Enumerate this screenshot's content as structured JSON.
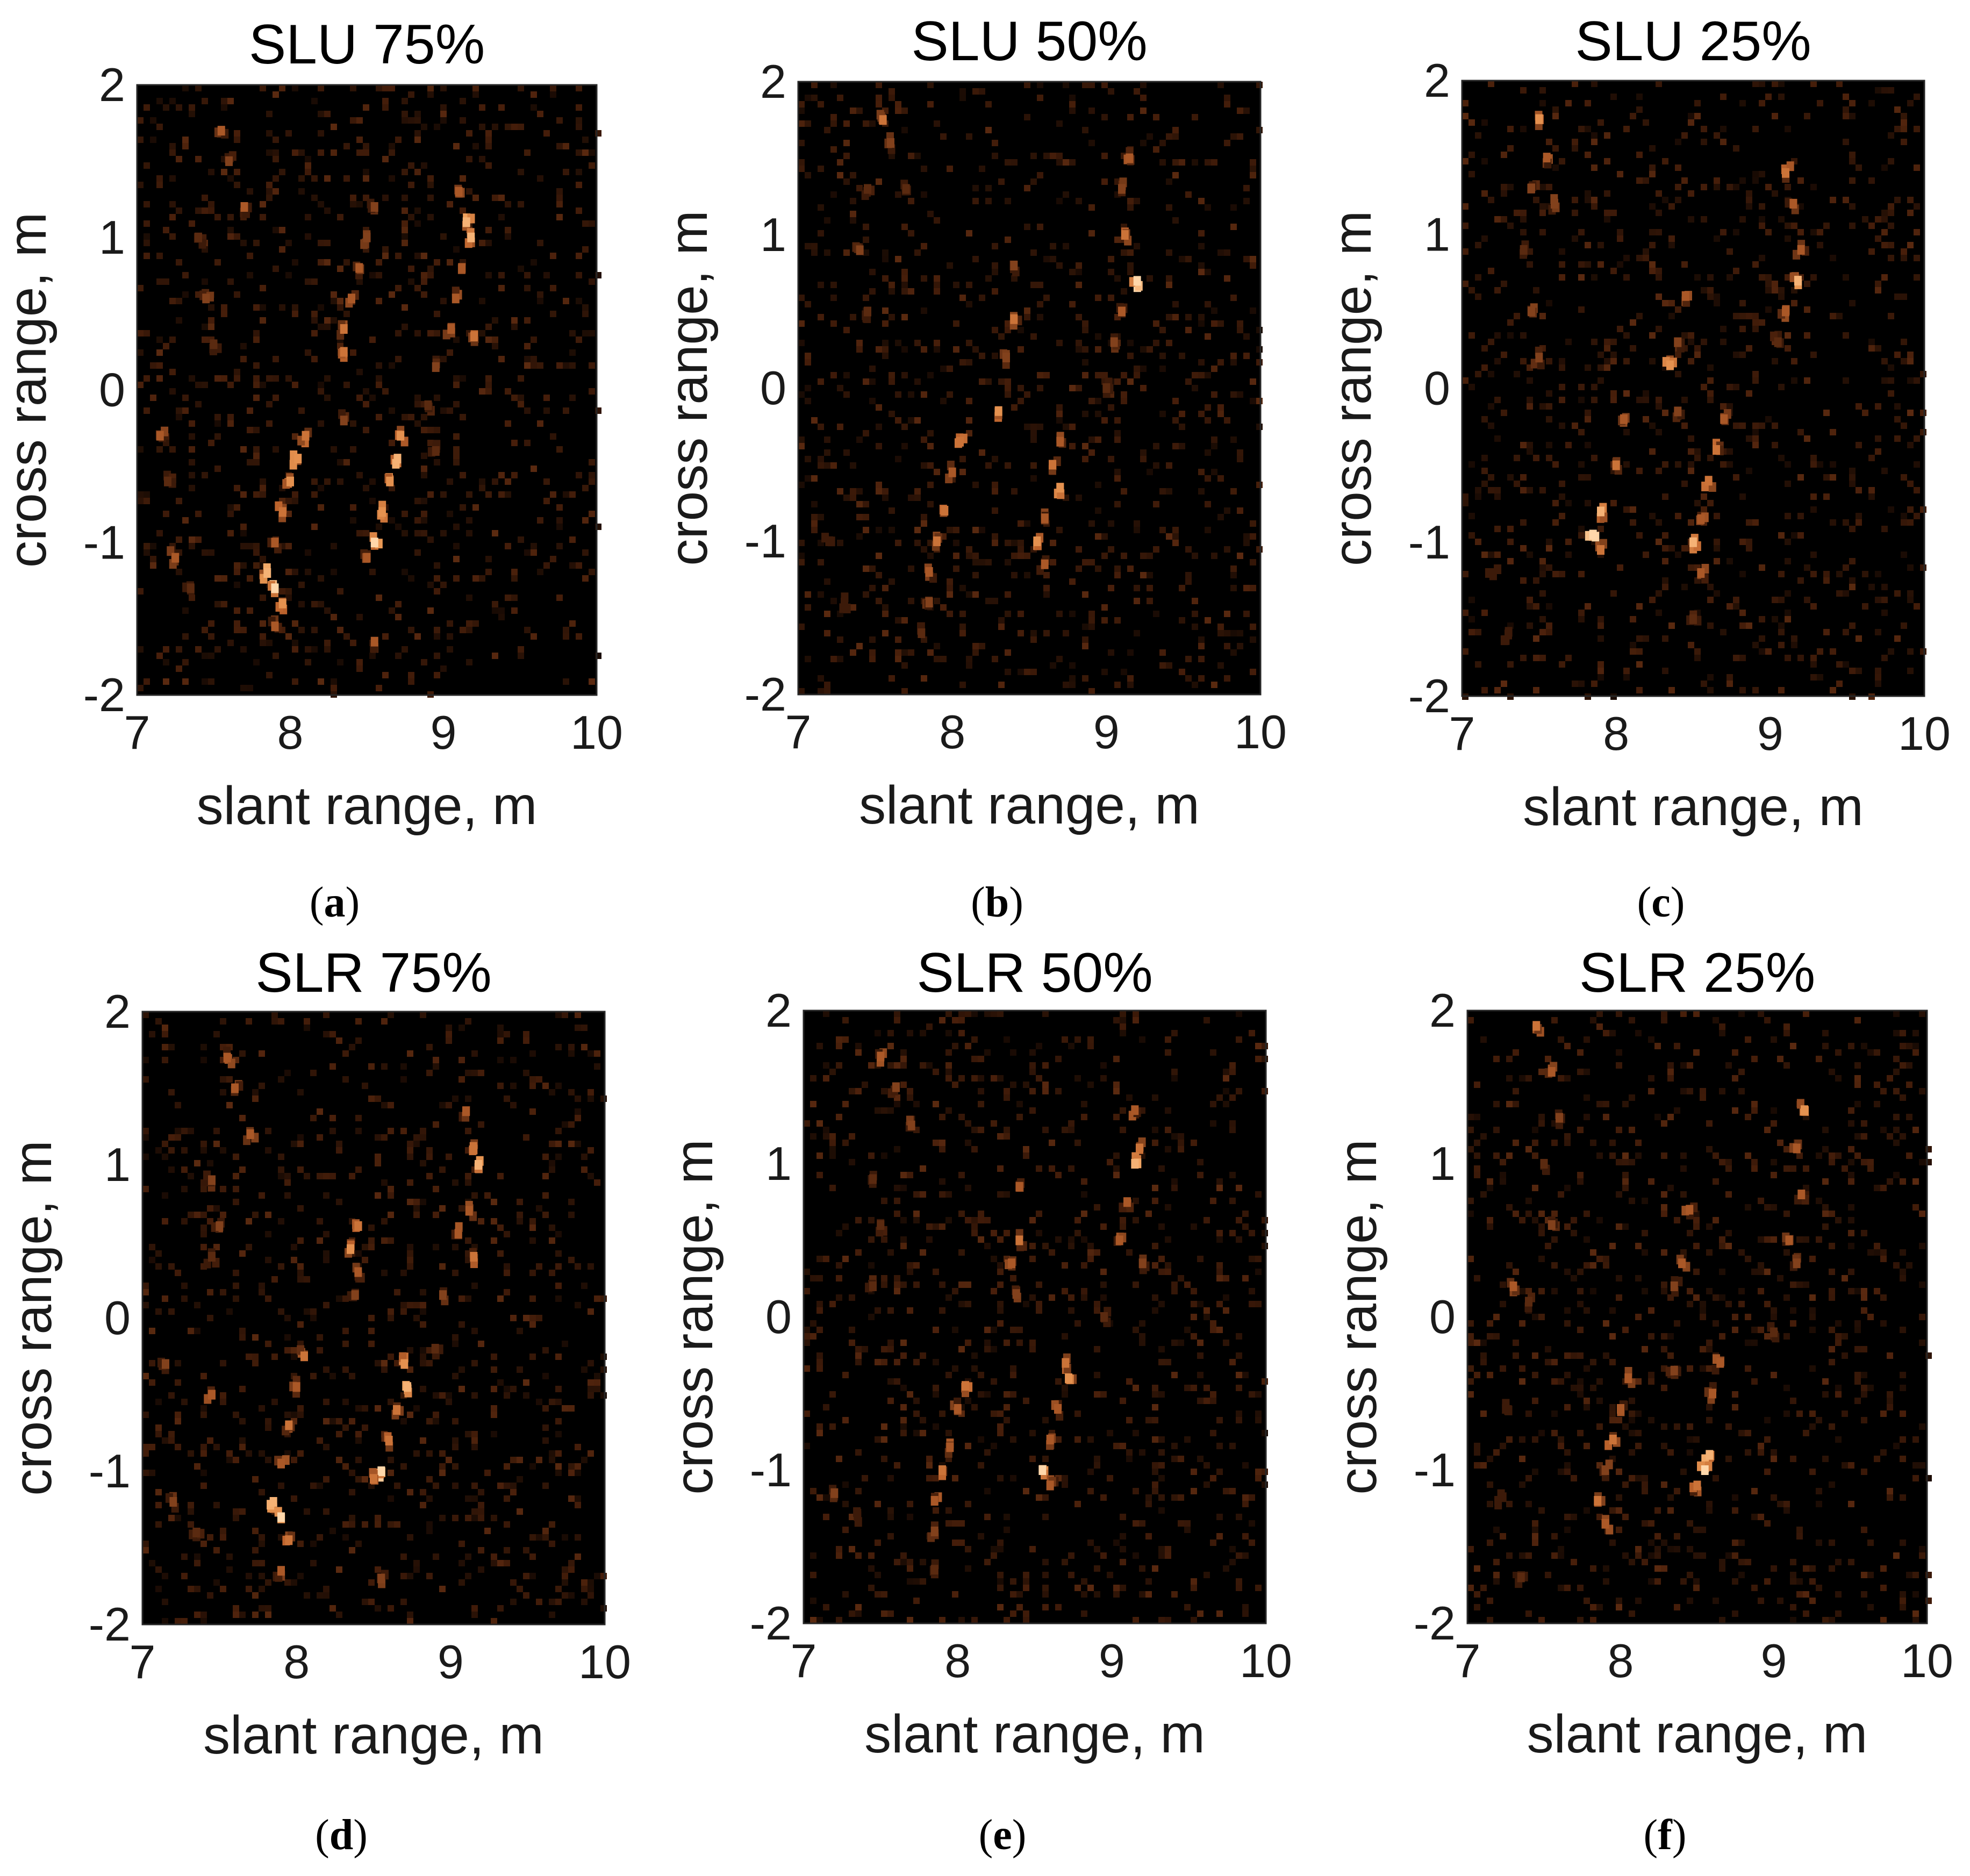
{
  "chart_data": [
    {
      "type": "heatmap",
      "panel": "a",
      "title": "SLU 75%",
      "xlabel": "slant range, m",
      "ylabel": "cross range, m",
      "xlim": [
        7,
        10
      ],
      "ylim": [
        -2,
        2
      ],
      "xticks": [
        "7",
        "8",
        "9",
        "10"
      ],
      "yticks": [
        "-2",
        "-1",
        "0",
        "1",
        "2"
      ],
      "caption": "a",
      "colormap": "black-to-orange",
      "points": [
        [
          7.55,
          1.7,
          0.6
        ],
        [
          7.6,
          1.5,
          0.5
        ],
        [
          7.7,
          1.2,
          0.6
        ],
        [
          7.4,
          1.0,
          0.4
        ],
        [
          7.45,
          0.6,
          0.5
        ],
        [
          7.5,
          0.3,
          0.4
        ],
        [
          7.15,
          -0.3,
          0.6
        ],
        [
          7.2,
          -0.6,
          0.4
        ],
        [
          7.25,
          -1.1,
          0.6
        ],
        [
          7.35,
          -1.3,
          0.4
        ],
        [
          8.1,
          -0.3,
          0.7
        ],
        [
          8.05,
          -0.45,
          0.8
        ],
        [
          8.0,
          -0.6,
          0.8
        ],
        [
          7.95,
          -0.8,
          0.7
        ],
        [
          7.9,
          -1.0,
          0.6
        ],
        [
          7.85,
          -1.2,
          0.9
        ],
        [
          7.9,
          -1.3,
          1.0
        ],
        [
          7.95,
          -1.4,
          0.8
        ],
        [
          7.9,
          -1.55,
          0.6
        ],
        [
          8.55,
          1.2,
          0.5
        ],
        [
          8.5,
          1.0,
          0.5
        ],
        [
          8.45,
          0.8,
          0.6
        ],
        [
          8.4,
          0.6,
          0.6
        ],
        [
          8.35,
          0.4,
          0.7
        ],
        [
          8.35,
          0.25,
          0.7
        ],
        [
          8.35,
          -0.2,
          0.5
        ],
        [
          8.72,
          -0.3,
          0.8
        ],
        [
          8.7,
          -0.45,
          0.9
        ],
        [
          8.65,
          -0.6,
          0.8
        ],
        [
          8.6,
          -0.8,
          0.8
        ],
        [
          8.55,
          -1.0,
          1.0
        ],
        [
          8.5,
          -1.1,
          0.6
        ],
        [
          8.55,
          -1.65,
          0.6
        ],
        [
          9.1,
          1.3,
          0.6
        ],
        [
          9.15,
          1.1,
          0.9
        ],
        [
          9.18,
          1.0,
          0.9
        ],
        [
          9.12,
          0.8,
          0.6
        ],
        [
          9.08,
          0.6,
          0.6
        ],
        [
          9.05,
          0.4,
          0.6
        ],
        [
          9.2,
          0.35,
          0.7
        ],
        [
          8.95,
          0.15,
          0.5
        ],
        [
          8.9,
          -0.1,
          0.4
        ],
        [
          8.95,
          -0.4,
          0.4
        ]
      ]
    },
    {
      "type": "heatmap",
      "panel": "b",
      "title": "SLU 50%",
      "xlabel": "slant range, m",
      "ylabel": "cross range, m",
      "xlim": [
        7,
        10
      ],
      "ylim": [
        -2,
        2
      ],
      "xticks": [
        "7",
        "8",
        "9",
        "10"
      ],
      "yticks": [
        "-2",
        "-1",
        "0",
        "1",
        "2"
      ],
      "caption": "b",
      "colormap": "black-to-orange",
      "points": [
        [
          7.55,
          1.75,
          0.7
        ],
        [
          7.6,
          1.6,
          0.5
        ],
        [
          7.45,
          1.3,
          0.4
        ],
        [
          7.4,
          0.9,
          0.5
        ],
        [
          7.45,
          0.5,
          0.4
        ],
        [
          7.7,
          1.3,
          0.4
        ],
        [
          8.05,
          -0.35,
          0.7
        ],
        [
          8.0,
          -0.55,
          0.6
        ],
        [
          7.95,
          -0.8,
          0.7
        ],
        [
          7.9,
          -1.0,
          0.7
        ],
        [
          7.85,
          -1.2,
          0.6
        ],
        [
          7.85,
          -1.4,
          0.5
        ],
        [
          7.8,
          -1.6,
          0.4
        ],
        [
          8.4,
          0.8,
          0.5
        ],
        [
          8.4,
          0.45,
          0.7
        ],
        [
          8.35,
          0.2,
          0.5
        ],
        [
          8.3,
          -0.15,
          0.8
        ],
        [
          8.7,
          -0.35,
          0.6
        ],
        [
          8.65,
          -0.5,
          0.7
        ],
        [
          8.7,
          -0.65,
          0.8
        ],
        [
          8.6,
          -0.85,
          0.6
        ],
        [
          8.55,
          -1.0,
          0.8
        ],
        [
          8.6,
          -1.15,
          0.6
        ],
        [
          9.15,
          1.5,
          0.6
        ],
        [
          9.1,
          1.3,
          0.5
        ],
        [
          9.12,
          1.0,
          0.7
        ],
        [
          9.2,
          0.7,
          1.0
        ],
        [
          9.1,
          0.5,
          0.6
        ],
        [
          9.05,
          0.3,
          0.5
        ],
        [
          9.0,
          0.0,
          0.4
        ],
        [
          7.2,
          -1.0,
          0.3
        ],
        [
          7.3,
          -1.4,
          0.3
        ]
      ]
    },
    {
      "type": "heatmap",
      "panel": "c",
      "title": "SLU 25%",
      "xlabel": "slant range, m",
      "ylabel": "cross range, m",
      "xlim": [
        7,
        10
      ],
      "ylim": [
        -2,
        2
      ],
      "xticks": [
        "7",
        "8",
        "9",
        "10"
      ],
      "yticks": [
        "-2",
        "-1",
        "0",
        "1",
        "2"
      ],
      "caption": "c",
      "colormap": "black-to-orange",
      "points": [
        [
          7.5,
          1.75,
          0.8
        ],
        [
          7.55,
          1.5,
          0.6
        ],
        [
          7.45,
          1.3,
          0.5
        ],
        [
          7.6,
          1.2,
          0.5
        ],
        [
          7.4,
          0.9,
          0.4
        ],
        [
          7.45,
          0.5,
          0.5
        ],
        [
          7.5,
          0.2,
          0.5
        ],
        [
          8.05,
          -0.2,
          0.6
        ],
        [
          8.0,
          -0.5,
          0.7
        ],
        [
          7.9,
          -0.8,
          0.9
        ],
        [
          7.85,
          -0.95,
          1.0
        ],
        [
          7.9,
          -1.05,
          0.7
        ],
        [
          8.45,
          0.6,
          0.6
        ],
        [
          8.4,
          0.3,
          0.5
        ],
        [
          8.35,
          0.15,
          0.8
        ],
        [
          8.4,
          -0.15,
          0.5
        ],
        [
          8.7,
          -0.2,
          0.6
        ],
        [
          8.65,
          -0.4,
          0.7
        ],
        [
          8.6,
          -0.6,
          0.7
        ],
        [
          8.55,
          -0.85,
          0.6
        ],
        [
          8.5,
          -1.0,
          0.9
        ],
        [
          8.55,
          -1.2,
          0.6
        ],
        [
          8.5,
          -1.5,
          0.4
        ],
        [
          9.1,
          1.4,
          0.7
        ],
        [
          9.15,
          1.2,
          0.6
        ],
        [
          9.2,
          0.9,
          0.6
        ],
        [
          9.18,
          0.7,
          0.9
        ],
        [
          9.1,
          0.5,
          0.6
        ],
        [
          9.05,
          0.3,
          0.4
        ],
        [
          7.2,
          -1.2,
          0.3
        ],
        [
          7.3,
          -1.6,
          0.3
        ]
      ]
    },
    {
      "type": "heatmap",
      "panel": "d",
      "title": "SLR 75%",
      "xlabel": "slant range, m",
      "ylabel": "cross range, m",
      "xlim": [
        7,
        10
      ],
      "ylim": [
        -2,
        2
      ],
      "xticks": [
        "7",
        "8",
        "9",
        "10"
      ],
      "yticks": [
        "-2",
        "-1",
        "0",
        "1",
        "2"
      ],
      "caption": "d",
      "colormap": "black-to-orange",
      "points": [
        [
          7.55,
          1.7,
          0.6
        ],
        [
          7.6,
          1.5,
          0.6
        ],
        [
          7.7,
          1.2,
          0.6
        ],
        [
          7.45,
          0.9,
          0.5
        ],
        [
          7.5,
          0.6,
          0.5
        ],
        [
          7.45,
          0.4,
          0.4
        ],
        [
          7.15,
          -0.3,
          0.5
        ],
        [
          7.45,
          -0.5,
          0.6
        ],
        [
          7.2,
          -1.2,
          0.5
        ],
        [
          7.35,
          -1.4,
          0.4
        ],
        [
          8.05,
          -0.25,
          0.7
        ],
        [
          8.0,
          -0.45,
          0.6
        ],
        [
          7.95,
          -0.7,
          0.7
        ],
        [
          7.9,
          -0.95,
          0.6
        ],
        [
          7.85,
          -1.2,
          0.9
        ],
        [
          7.9,
          -1.3,
          1.0
        ],
        [
          7.95,
          -1.45,
          0.7
        ],
        [
          7.9,
          -1.65,
          0.6
        ],
        [
          8.4,
          0.6,
          0.7
        ],
        [
          8.35,
          0.45,
          0.8
        ],
        [
          8.4,
          0.3,
          0.6
        ],
        [
          8.38,
          0.15,
          0.5
        ],
        [
          8.7,
          -0.3,
          0.8
        ],
        [
          8.72,
          -0.45,
          0.9
        ],
        [
          8.65,
          -0.6,
          0.7
        ],
        [
          8.6,
          -0.8,
          0.7
        ],
        [
          8.55,
          -1.0,
          1.0
        ],
        [
          8.5,
          -1.05,
          0.7
        ],
        [
          8.55,
          -1.7,
          0.5
        ],
        [
          9.1,
          1.35,
          0.6
        ],
        [
          9.15,
          1.1,
          0.7
        ],
        [
          9.18,
          1.0,
          0.9
        ],
        [
          9.12,
          0.7,
          0.6
        ],
        [
          9.05,
          0.55,
          0.6
        ],
        [
          9.15,
          0.4,
          0.7
        ],
        [
          8.95,
          0.15,
          0.5
        ],
        [
          8.9,
          -0.2,
          0.4
        ]
      ]
    },
    {
      "type": "heatmap",
      "panel": "e",
      "title": "SLR 50%",
      "xlabel": "slant range, m",
      "ylabel": "cross range, m",
      "xlim": [
        7,
        10
      ],
      "ylim": [
        -2,
        2
      ],
      "xticks": [
        "7",
        "8",
        "9",
        "10"
      ],
      "yticks": [
        "-2",
        "-1",
        "0",
        "1",
        "2"
      ],
      "caption": "e",
      "colormap": "black-to-orange",
      "points": [
        [
          7.5,
          1.7,
          0.6
        ],
        [
          7.6,
          1.5,
          0.5
        ],
        [
          7.7,
          1.25,
          0.5
        ],
        [
          7.45,
          0.9,
          0.4
        ],
        [
          7.5,
          0.6,
          0.4
        ],
        [
          7.45,
          0.2,
          0.4
        ],
        [
          7.2,
          -1.15,
          0.5
        ],
        [
          7.35,
          -1.3,
          0.3
        ],
        [
          8.05,
          -0.45,
          0.7
        ],
        [
          8.0,
          -0.6,
          0.6
        ],
        [
          7.95,
          -0.85,
          0.6
        ],
        [
          7.9,
          -1.0,
          0.7
        ],
        [
          7.85,
          -1.2,
          0.6
        ],
        [
          7.85,
          -1.4,
          0.5
        ],
        [
          7.85,
          -1.65,
          0.4
        ],
        [
          8.4,
          0.85,
          0.6
        ],
        [
          8.4,
          0.5,
          0.7
        ],
        [
          8.35,
          0.35,
          0.6
        ],
        [
          8.38,
          0.15,
          0.5
        ],
        [
          8.7,
          -0.3,
          0.7
        ],
        [
          8.72,
          -0.4,
          0.8
        ],
        [
          8.65,
          -0.6,
          0.6
        ],
        [
          8.6,
          -0.8,
          0.6
        ],
        [
          8.55,
          -1.0,
          1.0
        ],
        [
          8.6,
          -1.1,
          0.6
        ],
        [
          9.15,
          1.35,
          0.6
        ],
        [
          9.18,
          1.1,
          0.7
        ],
        [
          9.15,
          1.0,
          0.9
        ],
        [
          9.1,
          0.75,
          0.6
        ],
        [
          9.05,
          0.5,
          0.6
        ],
        [
          9.2,
          0.35,
          0.5
        ],
        [
          8.95,
          0.0,
          0.4
        ]
      ]
    },
    {
      "type": "heatmap",
      "panel": "f",
      "title": "SLR 25%",
      "xlabel": "slant range, m",
      "ylabel": "cross range, m",
      "xlim": [
        7,
        10
      ],
      "ylim": [
        -2,
        2
      ],
      "xticks": [
        "7",
        "8",
        "9",
        "10"
      ],
      "yticks": [
        "-2",
        "-1",
        "0",
        "1",
        "2"
      ],
      "caption": "f",
      "colormap": "black-to-orange",
      "points": [
        [
          7.45,
          1.9,
          0.7
        ],
        [
          7.55,
          1.6,
          0.6
        ],
        [
          7.6,
          1.3,
          0.5
        ],
        [
          7.5,
          1.0,
          0.4
        ],
        [
          7.55,
          0.6,
          0.5
        ],
        [
          7.3,
          0.2,
          0.6
        ],
        [
          7.4,
          0.1,
          0.4
        ],
        [
          7.25,
          -0.6,
          0.3
        ],
        [
          7.2,
          -1.2,
          0.3
        ],
        [
          7.35,
          -1.7,
          0.4
        ],
        [
          8.05,
          -0.4,
          0.6
        ],
        [
          8.0,
          -0.6,
          0.6
        ],
        [
          7.95,
          -0.8,
          0.7
        ],
        [
          7.9,
          -1.0,
          0.5
        ],
        [
          7.85,
          -1.2,
          0.7
        ],
        [
          7.9,
          -1.35,
          0.6
        ],
        [
          8.45,
          0.7,
          0.6
        ],
        [
          8.4,
          0.35,
          0.6
        ],
        [
          8.35,
          0.2,
          0.5
        ],
        [
          8.35,
          -0.35,
          0.5
        ],
        [
          8.65,
          -0.3,
          0.6
        ],
        [
          8.6,
          -0.5,
          0.6
        ],
        [
          8.58,
          -0.9,
          0.9
        ],
        [
          8.55,
          -1.0,
          1.0
        ],
        [
          8.5,
          -1.1,
          0.7
        ],
        [
          9.2,
          1.35,
          0.8
        ],
        [
          9.15,
          1.1,
          0.6
        ],
        [
          9.18,
          0.8,
          0.6
        ],
        [
          9.1,
          0.5,
          0.6
        ],
        [
          9.15,
          0.35,
          0.5
        ],
        [
          9.0,
          -0.1,
          0.4
        ]
      ]
    }
  ]
}
